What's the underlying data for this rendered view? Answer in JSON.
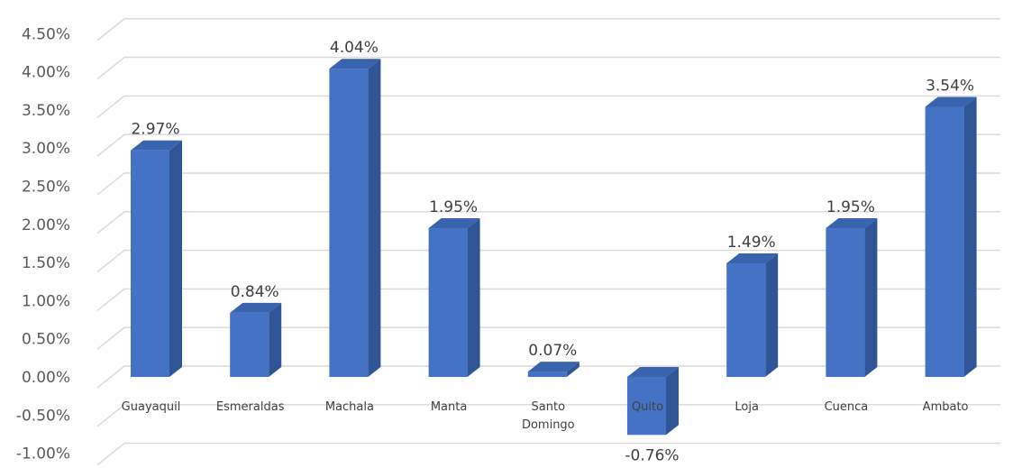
{
  "chart_data": {
    "type": "bar",
    "style": "3d-column",
    "categories": [
      "Guayaquil",
      "Esmeraldas",
      "Machala",
      "Manta",
      "Santo Domingo",
      "Quito",
      "Loja",
      "Cuenca",
      "Ambato"
    ],
    "category_label_lines": [
      [
        "Guayaquil"
      ],
      [
        "Esmeraldas"
      ],
      [
        "Machala"
      ],
      [
        "Manta"
      ],
      [
        "Santo",
        "Domingo"
      ],
      [
        "Quito"
      ],
      [
        "Loja"
      ],
      [
        "Cuenca"
      ],
      [
        "Ambato"
      ]
    ],
    "values": [
      2.97,
      0.84,
      4.04,
      1.95,
      0.07,
      -0.76,
      1.49,
      1.95,
      3.54
    ],
    "data_labels": [
      "2.97%",
      "0.84%",
      "4.04%",
      "1.95%",
      "0.07%",
      "-0.76%",
      "1.49%",
      "1.95%",
      "3.54%"
    ],
    "y_ticks": [
      {
        "value": 4.5,
        "label": "4.50%"
      },
      {
        "value": 4.0,
        "label": "4.00%"
      },
      {
        "value": 3.5,
        "label": "3.50%"
      },
      {
        "value": 3.0,
        "label": "3.00%"
      },
      {
        "value": 2.5,
        "label": "2.50%"
      },
      {
        "value": 2.0,
        "label": "2.00%"
      },
      {
        "value": 1.5,
        "label": "1.50%"
      },
      {
        "value": 1.0,
        "label": "1.00%"
      },
      {
        "value": 0.5,
        "label": "0.50%"
      },
      {
        "value": 0.0,
        "label": "0.00%"
      },
      {
        "value": -0.5,
        "label": "-0.50%"
      },
      {
        "value": -1.0,
        "label": "-1.00%"
      }
    ],
    "ylim": [
      -1.0,
      4.5
    ],
    "grid": true,
    "title": "",
    "xlabel": "",
    "ylabel": "",
    "colors": {
      "bar_front": "#4472C4",
      "bar_side": "#2F5597",
      "bar_top": "#3A63AE",
      "gridline": "#D9D9D9"
    }
  }
}
